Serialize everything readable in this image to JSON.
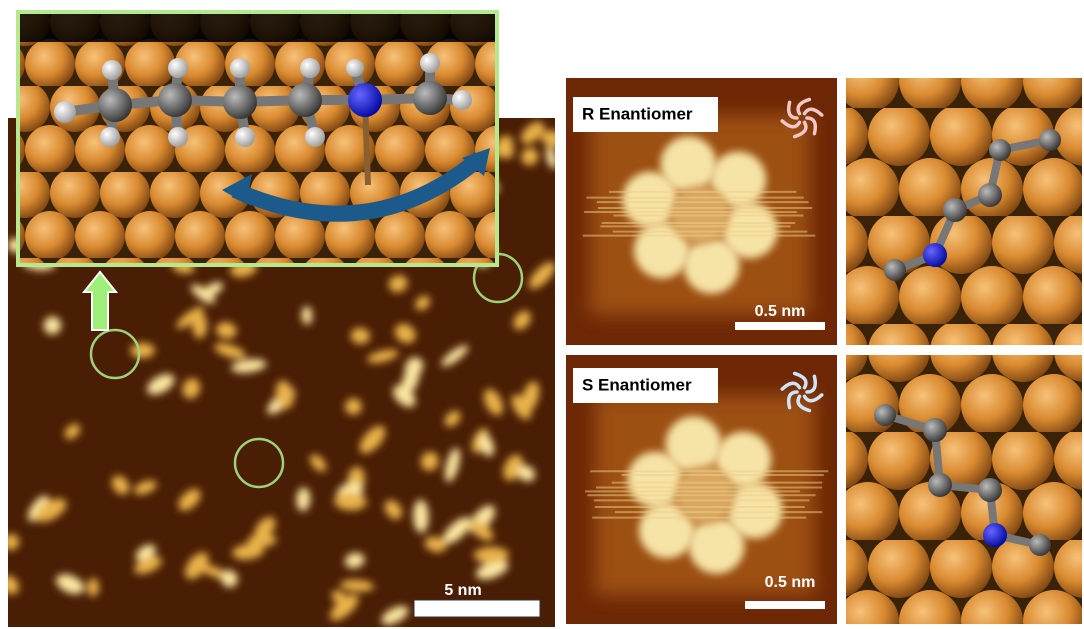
{
  "panels": {
    "overview": {
      "scale_bar": "5 nm"
    },
    "r_enantiomer": {
      "label": "R Enantiomer",
      "scale_bar": "0.5 nm"
    },
    "s_enantiomer": {
      "label": "S Enantiomer",
      "scale_bar": "0.5 nm"
    }
  }
}
